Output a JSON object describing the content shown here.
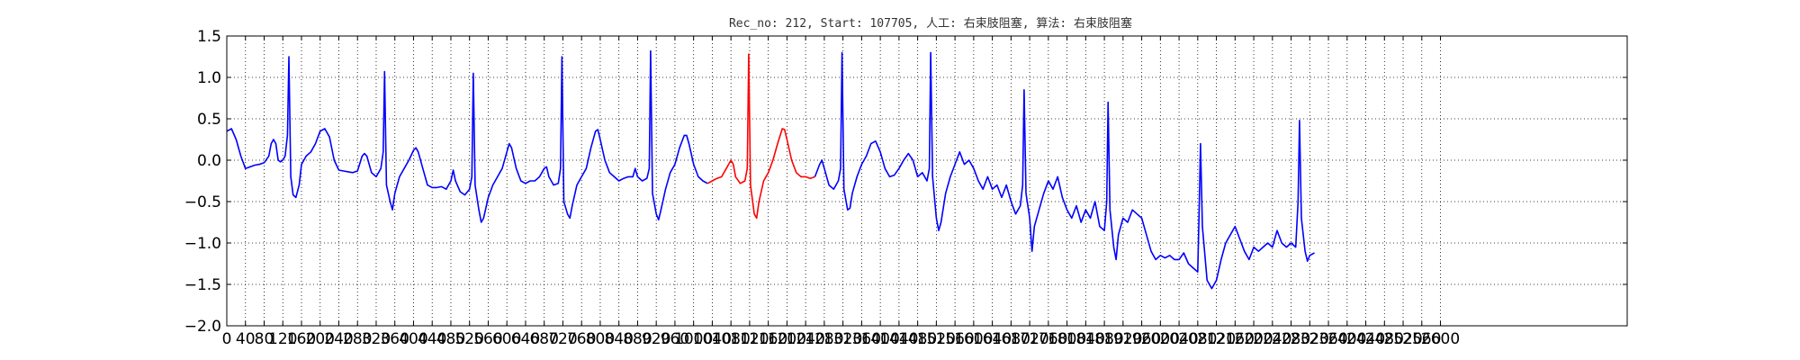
{
  "chart_data": {
    "type": "line",
    "title": "Rec_no: 212, Start: 107705, 人工: 右束肢阻塞, 算法: 右束肢阻塞",
    "xlabel": "",
    "ylabel": "",
    "ylim": [
      -2.0,
      1.5
    ],
    "xlim": [
      0,
      3000
    ],
    "grid": true,
    "y_ticks": [
      "−2.0",
      "−1.5",
      "−1.0",
      "−0.5",
      "0.0",
      "0.5",
      "1.0",
      "1.5"
    ],
    "x_ticks": [
      "0",
      "40",
      "80",
      "120",
      "160",
      "200",
      "240",
      "280",
      "320",
      "360",
      "400",
      "440",
      "480",
      "520",
      "560",
      "600",
      "640",
      "680",
      "720",
      "760",
      "800",
      "840",
      "880",
      "920",
      "960",
      "1000",
      "1040",
      "1080",
      "1120",
      "1160",
      "1200",
      "1240",
      "1280",
      "1320",
      "1360",
      "1400",
      "1440",
      "1480",
      "1520",
      "1560",
      "1600",
      "1640",
      "1680",
      "1720",
      "1760",
      "1800",
      "1840",
      "1880",
      "1920",
      "1960",
      "2000",
      "2040",
      "2080",
      "2120",
      "2160",
      "2200",
      "2240",
      "2280",
      "2320",
      "2360",
      "2400",
      "2440",
      "2480",
      "2520",
      "2560",
      "2600"
    ],
    "x_tick_values": [
      0,
      40,
      80,
      120,
      160,
      200,
      240,
      280,
      320,
      360,
      400,
      440,
      480,
      520,
      560,
      600,
      640,
      680,
      720,
      760,
      800,
      840,
      880,
      920,
      960,
      1000,
      1040,
      1080,
      1120,
      1160,
      1200,
      1240,
      1280,
      1320,
      1360,
      1400,
      1440,
      1480,
      1520,
      1560,
      1600,
      1640,
      1680,
      1720,
      1760,
      1800,
      1840,
      1880,
      1920,
      1960,
      2000,
      2040,
      2080,
      2120,
      2160,
      2200,
      2240,
      2280,
      2320,
      2360,
      2400,
      2440,
      2480,
      2520,
      2560,
      2600
    ],
    "series": [
      {
        "color": "#0000ff",
        "points": [
          [
            0,
            0.35
          ],
          [
            10,
            0.38
          ],
          [
            20,
            0.25
          ],
          [
            30,
            0.05
          ],
          [
            40,
            -0.1
          ],
          [
            50,
            -0.08
          ],
          [
            60,
            -0.06
          ],
          [
            70,
            -0.05
          ],
          [
            80,
            -0.03
          ],
          [
            90,
            0.05
          ],
          [
            95,
            0.2
          ],
          [
            100,
            0.25
          ],
          [
            105,
            0.2
          ],
          [
            110,
            0.0
          ],
          [
            115,
            -0.02
          ],
          [
            120,
            0.0
          ],
          [
            125,
            0.05
          ],
          [
            130,
            0.3
          ],
          [
            133,
            1.25
          ],
          [
            137,
            -0.2
          ],
          [
            142,
            -0.42
          ],
          [
            148,
            -0.45
          ],
          [
            155,
            -0.3
          ],
          [
            160,
            -0.05
          ],
          [
            170,
            0.05
          ],
          [
            180,
            0.1
          ],
          [
            190,
            0.2
          ],
          [
            200,
            0.35
          ],
          [
            210,
            0.38
          ],
          [
            220,
            0.28
          ],
          [
            230,
            0.0
          ],
          [
            240,
            -0.12
          ],
          [
            250,
            -0.13
          ],
          [
            260,
            -0.14
          ],
          [
            270,
            -0.15
          ],
          [
            280,
            -0.13
          ],
          [
            290,
            0.05
          ],
          [
            295,
            0.08
          ],
          [
            300,
            0.05
          ],
          [
            310,
            -0.15
          ],
          [
            320,
            -0.2
          ],
          [
            330,
            -0.1
          ],
          [
            335,
            0.1
          ],
          [
            338,
            1.07
          ],
          [
            342,
            -0.3
          ],
          [
            350,
            -0.5
          ],
          [
            355,
            -0.6
          ],
          [
            360,
            -0.4
          ],
          [
            370,
            -0.2
          ],
          [
            380,
            -0.1
          ],
          [
            390,
            0.0
          ],
          [
            400,
            0.12
          ],
          [
            405,
            0.15
          ],
          [
            410,
            0.1
          ],
          [
            420,
            -0.1
          ],
          [
            430,
            -0.3
          ],
          [
            440,
            -0.33
          ],
          [
            450,
            -0.33
          ],
          [
            460,
            -0.32
          ],
          [
            470,
            -0.35
          ],
          [
            480,
            -0.25
          ],
          [
            485,
            -0.12
          ],
          [
            490,
            -0.25
          ],
          [
            500,
            -0.38
          ],
          [
            510,
            -0.42
          ],
          [
            520,
            -0.35
          ],
          [
            525,
            -0.2
          ],
          [
            528,
            1.05
          ],
          [
            532,
            -0.3
          ],
          [
            540,
            -0.6
          ],
          [
            545,
            -0.75
          ],
          [
            550,
            -0.7
          ],
          [
            560,
            -0.45
          ],
          [
            570,
            -0.3
          ],
          [
            580,
            -0.2
          ],
          [
            590,
            -0.1
          ],
          [
            600,
            0.1
          ],
          [
            605,
            0.2
          ],
          [
            610,
            0.15
          ],
          [
            620,
            -0.1
          ],
          [
            630,
            -0.25
          ],
          [
            640,
            -0.28
          ],
          [
            650,
            -0.25
          ],
          [
            660,
            -0.25
          ],
          [
            670,
            -0.2
          ],
          [
            680,
            -0.1
          ],
          [
            685,
            -0.08
          ],
          [
            690,
            -0.2
          ],
          [
            700,
            -0.3
          ],
          [
            710,
            -0.28
          ],
          [
            715,
            -0.1
          ],
          [
            718,
            1.25
          ],
          [
            722,
            -0.5
          ],
          [
            730,
            -0.65
          ],
          [
            735,
            -0.7
          ],
          [
            740,
            -0.55
          ],
          [
            750,
            -0.3
          ],
          [
            760,
            -0.2
          ],
          [
            770,
            -0.1
          ],
          [
            780,
            0.15
          ],
          [
            790,
            0.35
          ],
          [
            795,
            0.37
          ],
          [
            800,
            0.25
          ],
          [
            810,
            0.0
          ],
          [
            820,
            -0.15
          ],
          [
            830,
            -0.2
          ],
          [
            840,
            -0.25
          ],
          [
            850,
            -0.22
          ],
          [
            860,
            -0.2
          ],
          [
            870,
            -0.2
          ],
          [
            875,
            -0.1
          ],
          [
            880,
            -0.2
          ],
          [
            890,
            -0.25
          ],
          [
            900,
            -0.22
          ],
          [
            905,
            -0.1
          ],
          [
            908,
            1.32
          ],
          [
            912,
            -0.4
          ],
          [
            920,
            -0.65
          ],
          [
            925,
            -0.72
          ],
          [
            930,
            -0.6
          ],
          [
            940,
            -0.35
          ],
          [
            950,
            -0.15
          ],
          [
            960,
            -0.05
          ],
          [
            970,
            0.15
          ],
          [
            980,
            0.3
          ],
          [
            985,
            0.3
          ],
          [
            990,
            0.2
          ],
          [
            1000,
            -0.05
          ],
          [
            1010,
            -0.2
          ],
          [
            1020,
            -0.25
          ],
          [
            1030,
            -0.28
          ]
        ],
        "name": ""
      },
      {
        "color": "#ff0000",
        "points": [
          [
            1030,
            -0.28
          ],
          [
            1040,
            -0.25
          ],
          [
            1050,
            -0.22
          ],
          [
            1060,
            -0.2
          ],
          [
            1070,
            -0.1
          ],
          [
            1080,
            0.0
          ],
          [
            1085,
            -0.05
          ],
          [
            1090,
            -0.2
          ],
          [
            1100,
            -0.28
          ],
          [
            1110,
            -0.25
          ],
          [
            1115,
            -0.1
          ],
          [
            1118,
            1.28
          ],
          [
            1122,
            -0.3
          ],
          [
            1130,
            -0.65
          ],
          [
            1135,
            -0.7
          ],
          [
            1140,
            -0.5
          ],
          [
            1150,
            -0.25
          ],
          [
            1160,
            -0.15
          ],
          [
            1170,
            0.0
          ],
          [
            1180,
            0.2
          ],
          [
            1190,
            0.38
          ],
          [
            1195,
            0.37
          ],
          [
            1200,
            0.25
          ],
          [
            1210,
            0.0
          ],
          [
            1220,
            -0.15
          ],
          [
            1230,
            -0.2
          ],
          [
            1240,
            -0.2
          ],
          [
            1250,
            -0.22
          ],
          [
            1260,
            -0.2
          ]
        ],
        "name": ""
      },
      {
        "color": "#0000ff",
        "points": [
          [
            1260,
            -0.2
          ],
          [
            1270,
            -0.05
          ],
          [
            1275,
            0.0
          ],
          [
            1280,
            -0.1
          ],
          [
            1290,
            -0.3
          ],
          [
            1300,
            -0.35
          ],
          [
            1310,
            -0.25
          ],
          [
            1315,
            -0.1
          ],
          [
            1318,
            1.3
          ],
          [
            1322,
            -0.35
          ],
          [
            1330,
            -0.6
          ],
          [
            1335,
            -0.58
          ],
          [
            1340,
            -0.4
          ],
          [
            1350,
            -0.2
          ],
          [
            1360,
            -0.05
          ],
          [
            1370,
            0.05
          ],
          [
            1380,
            0.2
          ],
          [
            1390,
            0.23
          ],
          [
            1400,
            0.1
          ],
          [
            1410,
            -0.1
          ],
          [
            1420,
            -0.2
          ],
          [
            1430,
            -0.18
          ],
          [
            1440,
            -0.1
          ],
          [
            1450,
            0.0
          ],
          [
            1460,
            0.08
          ],
          [
            1470,
            0.0
          ],
          [
            1480,
            -0.2
          ],
          [
            1490,
            -0.15
          ],
          [
            1500,
            -0.25
          ],
          [
            1505,
            -0.1
          ],
          [
            1508,
            1.3
          ],
          [
            1512,
            -0.2
          ],
          [
            1520,
            -0.7
          ],
          [
            1525,
            -0.85
          ],
          [
            1530,
            -0.75
          ],
          [
            1540,
            -0.4
          ],
          [
            1550,
            -0.2
          ],
          [
            1560,
            -0.05
          ],
          [
            1570,
            0.1
          ],
          [
            1580,
            -0.05
          ],
          [
            1590,
            0.0
          ],
          [
            1600,
            -0.1
          ],
          [
            1610,
            -0.25
          ],
          [
            1620,
            -0.35
          ],
          [
            1630,
            -0.2
          ],
          [
            1640,
            -0.35
          ],
          [
            1650,
            -0.3
          ],
          [
            1660,
            -0.45
          ],
          [
            1670,
            -0.3
          ],
          [
            1680,
            -0.5
          ],
          [
            1690,
            -0.65
          ],
          [
            1700,
            -0.55
          ],
          [
            1705,
            -0.3
          ],
          [
            1708,
            0.85
          ],
          [
            1712,
            -0.4
          ],
          [
            1720,
            -0.7
          ],
          [
            1725,
            -1.1
          ],
          [
            1730,
            -0.8
          ],
          [
            1740,
            -0.6
          ],
          [
            1750,
            -0.4
          ],
          [
            1760,
            -0.25
          ],
          [
            1770,
            -0.35
          ],
          [
            1780,
            -0.2
          ],
          [
            1790,
            -0.45
          ],
          [
            1800,
            -0.6
          ],
          [
            1810,
            -0.7
          ],
          [
            1820,
            -0.55
          ],
          [
            1830,
            -0.75
          ],
          [
            1840,
            -0.6
          ],
          [
            1850,
            -0.7
          ],
          [
            1860,
            -0.5
          ],
          [
            1870,
            -0.8
          ],
          [
            1880,
            -0.85
          ],
          [
            1885,
            -0.5
          ],
          [
            1888,
            0.7
          ],
          [
            1892,
            -0.6
          ],
          [
            1900,
            -1.05
          ],
          [
            1905,
            -1.2
          ],
          [
            1910,
            -0.9
          ],
          [
            1920,
            -0.7
          ],
          [
            1930,
            -0.75
          ],
          [
            1940,
            -0.6
          ],
          [
            1950,
            -0.65
          ],
          [
            1960,
            -0.7
          ],
          [
            1970,
            -0.9
          ],
          [
            1980,
            -1.1
          ],
          [
            1990,
            -1.2
          ],
          [
            2000,
            -1.15
          ],
          [
            2010,
            -1.18
          ],
          [
            2020,
            -1.15
          ],
          [
            2030,
            -1.2
          ],
          [
            2040,
            -1.2
          ],
          [
            2050,
            -1.12
          ],
          [
            2060,
            -1.25
          ],
          [
            2070,
            -1.3
          ],
          [
            2080,
            -1.35
          ],
          [
            2083,
            -0.6
          ],
          [
            2086,
            0.2
          ],
          [
            2090,
            -0.8
          ],
          [
            2100,
            -1.45
          ],
          [
            2110,
            -1.55
          ],
          [
            2120,
            -1.45
          ],
          [
            2130,
            -1.2
          ],
          [
            2140,
            -1.0
          ],
          [
            2150,
            -0.9
          ],
          [
            2160,
            -0.8
          ],
          [
            2170,
            -0.95
          ],
          [
            2180,
            -1.1
          ],
          [
            2190,
            -1.2
          ],
          [
            2200,
            -1.05
          ],
          [
            2210,
            -1.1
          ],
          [
            2220,
            -1.05
          ],
          [
            2230,
            -1.0
          ],
          [
            2240,
            -1.05
          ],
          [
            2250,
            -0.85
          ],
          [
            2260,
            -1.0
          ],
          [
            2270,
            -1.05
          ],
          [
            2280,
            -1.0
          ],
          [
            2290,
            -1.05
          ],
          [
            2295,
            -0.5
          ],
          [
            2298,
            0.48
          ],
          [
            2302,
            -0.7
          ],
          [
            2310,
            -1.1
          ],
          [
            2315,
            -1.22
          ],
          [
            2320,
            -1.15
          ],
          [
            2330,
            -1.12
          ]
        ],
        "name": ""
      }
    ]
  }
}
